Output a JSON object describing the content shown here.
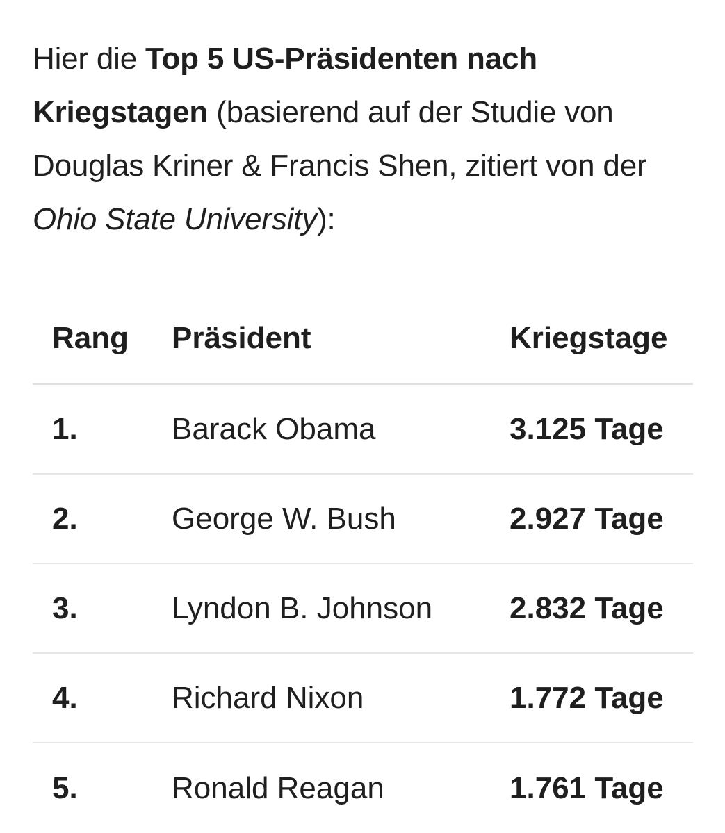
{
  "intro": {
    "prefix": "Hier die ",
    "bold": "Top 5 US-Präsidenten nach Kriegstagen",
    "middle": " (basierend auf der Studie von Douglas Kriner & Francis Shen, zitiert von der ",
    "italic": "Ohio State University",
    "suffix": "):"
  },
  "table": {
    "headers": {
      "rank": "Rang",
      "president": "Präsident",
      "days": "Kriegstage"
    },
    "rows": [
      {
        "rank": "1.",
        "president": "Barack Obama",
        "days": "3.125 Tage"
      },
      {
        "rank": "2.",
        "president": "George W. Bush",
        "days": "2.927 Tage"
      },
      {
        "rank": "3.",
        "president": "Lyndon B. Johnson",
        "days": "2.832 Tage"
      },
      {
        "rank": "4.",
        "president": "Richard Nixon",
        "days": "1.772 Tage"
      },
      {
        "rank": "5.",
        "president": "Ronald Reagan",
        "days": "1.761 Tage"
      }
    ]
  }
}
